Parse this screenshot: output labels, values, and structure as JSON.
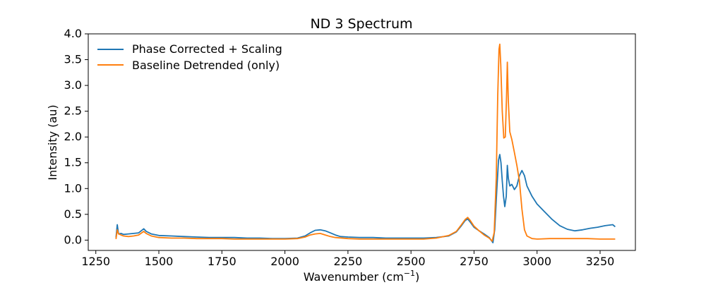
{
  "chart_data": {
    "type": "line",
    "title": "ND 3 Spectrum",
    "xlabel": "Wavenumber (cm",
    "xlabel_superscript": "−1",
    "xlabel_suffix": ")",
    "ylabel": "Intensity (au)",
    "xlim": [
      1220,
      3390
    ],
    "ylim": [
      -0.2,
      4.0
    ],
    "xticks": [
      1250,
      1500,
      1750,
      2000,
      2250,
      2500,
      2750,
      3000,
      3250
    ],
    "xtick_labels": [
      "1250",
      "1500",
      "1750",
      "2000",
      "2250",
      "2500",
      "2750",
      "3000",
      "3250"
    ],
    "yticks": [
      0.0,
      0.5,
      1.0,
      1.5,
      2.0,
      2.5,
      3.0,
      3.5,
      4.0
    ],
    "ytick_labels": [
      "0.0",
      "0.5",
      "1.0",
      "1.5",
      "2.0",
      "2.5",
      "3.0",
      "3.5",
      "4.0"
    ],
    "grid": false,
    "legend_position": "top-left",
    "series": [
      {
        "name": "Phase Corrected + Scaling",
        "color": "#1f77b4",
        "points": [
          [
            1330,
            0.05
          ],
          [
            1335,
            0.3
          ],
          [
            1340,
            0.12
          ],
          [
            1350,
            0.13
          ],
          [
            1360,
            0.11
          ],
          [
            1380,
            0.12
          ],
          [
            1400,
            0.13
          ],
          [
            1420,
            0.14
          ],
          [
            1440,
            0.22
          ],
          [
            1450,
            0.17
          ],
          [
            1470,
            0.12
          ],
          [
            1500,
            0.09
          ],
          [
            1550,
            0.08
          ],
          [
            1600,
            0.07
          ],
          [
            1650,
            0.06
          ],
          [
            1700,
            0.05
          ],
          [
            1750,
            0.05
          ],
          [
            1800,
            0.05
          ],
          [
            1850,
            0.04
          ],
          [
            1900,
            0.04
          ],
          [
            1950,
            0.03
          ],
          [
            2000,
            0.03
          ],
          [
            2050,
            0.04
          ],
          [
            2080,
            0.08
          ],
          [
            2100,
            0.14
          ],
          [
            2120,
            0.19
          ],
          [
            2140,
            0.2
          ],
          [
            2160,
            0.18
          ],
          [
            2180,
            0.14
          ],
          [
            2200,
            0.1
          ],
          [
            2220,
            0.07
          ],
          [
            2250,
            0.06
          ],
          [
            2300,
            0.05
          ],
          [
            2350,
            0.05
          ],
          [
            2400,
            0.04
          ],
          [
            2450,
            0.04
          ],
          [
            2500,
            0.04
          ],
          [
            2550,
            0.04
          ],
          [
            2600,
            0.05
          ],
          [
            2650,
            0.08
          ],
          [
            2680,
            0.16
          ],
          [
            2700,
            0.28
          ],
          [
            2715,
            0.38
          ],
          [
            2725,
            0.41
          ],
          [
            2735,
            0.35
          ],
          [
            2750,
            0.25
          ],
          [
            2770,
            0.18
          ],
          [
            2790,
            0.12
          ],
          [
            2810,
            0.05
          ],
          [
            2825,
            -0.05
          ],
          [
            2832,
            0.2
          ],
          [
            2840,
            0.95
          ],
          [
            2847,
            1.55
          ],
          [
            2852,
            1.66
          ],
          [
            2857,
            1.5
          ],
          [
            2862,
            1.15
          ],
          [
            2867,
            0.85
          ],
          [
            2872,
            0.65
          ],
          [
            2878,
            0.85
          ],
          [
            2882,
            1.45
          ],
          [
            2886,
            1.2
          ],
          [
            2892,
            1.05
          ],
          [
            2900,
            1.08
          ],
          [
            2910,
            0.98
          ],
          [
            2920,
            1.05
          ],
          [
            2930,
            1.25
          ],
          [
            2940,
            1.35
          ],
          [
            2950,
            1.25
          ],
          [
            2960,
            1.05
          ],
          [
            2980,
            0.85
          ],
          [
            3000,
            0.7
          ],
          [
            3030,
            0.55
          ],
          [
            3060,
            0.4
          ],
          [
            3090,
            0.28
          ],
          [
            3120,
            0.21
          ],
          [
            3150,
            0.18
          ],
          [
            3180,
            0.2
          ],
          [
            3210,
            0.23
          ],
          [
            3240,
            0.25
          ],
          [
            3270,
            0.28
          ],
          [
            3300,
            0.3
          ],
          [
            3310,
            0.26
          ]
        ]
      },
      {
        "name": "Baseline Detrended (only)",
        "color": "#ff7f0e",
        "points": [
          [
            1330,
            0.02
          ],
          [
            1335,
            0.2
          ],
          [
            1340,
            0.12
          ],
          [
            1350,
            0.1
          ],
          [
            1360,
            0.08
          ],
          [
            1380,
            0.07
          ],
          [
            1400,
            0.08
          ],
          [
            1420,
            0.1
          ],
          [
            1440,
            0.17
          ],
          [
            1450,
            0.13
          ],
          [
            1470,
            0.08
          ],
          [
            1500,
            0.05
          ],
          [
            1550,
            0.04
          ],
          [
            1600,
            0.04
          ],
          [
            1650,
            0.03
          ],
          [
            1700,
            0.03
          ],
          [
            1750,
            0.03
          ],
          [
            1800,
            0.02
          ],
          [
            1850,
            0.02
          ],
          [
            1900,
            0.02
          ],
          [
            1950,
            0.02
          ],
          [
            2000,
            0.02
          ],
          [
            2050,
            0.03
          ],
          [
            2080,
            0.06
          ],
          [
            2100,
            0.1
          ],
          [
            2120,
            0.12
          ],
          [
            2140,
            0.13
          ],
          [
            2160,
            0.1
          ],
          [
            2180,
            0.07
          ],
          [
            2200,
            0.05
          ],
          [
            2250,
            0.03
          ],
          [
            2300,
            0.02
          ],
          [
            2350,
            0.02
          ],
          [
            2400,
            0.02
          ],
          [
            2450,
            0.02
          ],
          [
            2500,
            0.02
          ],
          [
            2550,
            0.02
          ],
          [
            2600,
            0.04
          ],
          [
            2650,
            0.09
          ],
          [
            2680,
            0.17
          ],
          [
            2700,
            0.3
          ],
          [
            2715,
            0.4
          ],
          [
            2725,
            0.44
          ],
          [
            2735,
            0.38
          ],
          [
            2750,
            0.27
          ],
          [
            2770,
            0.18
          ],
          [
            2790,
            0.1
          ],
          [
            2810,
            0.04
          ],
          [
            2822,
            -0.02
          ],
          [
            2830,
            0.15
          ],
          [
            2838,
            1.2
          ],
          [
            2844,
            2.8
          ],
          [
            2849,
            3.7
          ],
          [
            2852,
            3.8
          ],
          [
            2856,
            3.4
          ],
          [
            2862,
            2.5
          ],
          [
            2868,
            1.98
          ],
          [
            2874,
            2.0
          ],
          [
            2879,
            2.8
          ],
          [
            2882,
            3.45
          ],
          [
            2886,
            2.7
          ],
          [
            2892,
            2.1
          ],
          [
            2900,
            1.95
          ],
          [
            2910,
            1.7
          ],
          [
            2920,
            1.45
          ],
          [
            2930,
            1.15
          ],
          [
            2940,
            0.6
          ],
          [
            2950,
            0.2
          ],
          [
            2960,
            0.08
          ],
          [
            2980,
            0.03
          ],
          [
            3000,
            0.02
          ],
          [
            3050,
            0.03
          ],
          [
            3100,
            0.03
          ],
          [
            3150,
            0.03
          ],
          [
            3200,
            0.03
          ],
          [
            3250,
            0.02
          ],
          [
            3300,
            0.02
          ],
          [
            3310,
            0.02
          ]
        ]
      }
    ]
  }
}
